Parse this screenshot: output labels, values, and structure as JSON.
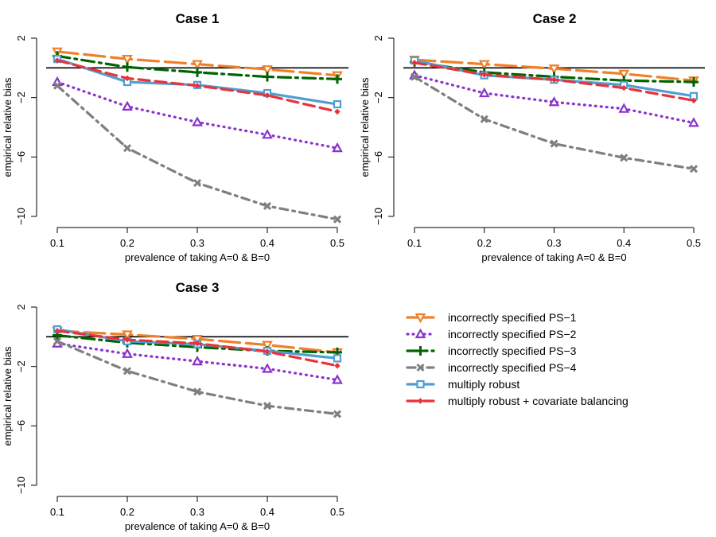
{
  "chart_data": [
    {
      "type": "line",
      "title": "Case 1",
      "xlabel": "prevalence of taking A=0 & B=0",
      "ylabel": "empirical relative bias",
      "x": [
        0.1,
        0.2,
        0.3,
        0.4,
        0.5
      ],
      "x_tick_labels": [
        "0.1",
        "0.2",
        "0.3",
        "0.4",
        "0.5"
      ],
      "y_ticks": [
        2,
        -2,
        -6,
        -10
      ],
      "y_tick_labels": [
        "2",
        "−2",
        "−6",
        "−10"
      ],
      "ylim": [
        -10,
        2
      ],
      "reference_line": 0,
      "series": [
        {
          "name": "incorrectly specified PS−1",
          "values": [
            1.1,
            0.6,
            0.25,
            -0.1,
            -0.5
          ]
        },
        {
          "name": "incorrectly specified PS−2",
          "values": [
            -0.95,
            -2.6,
            -3.65,
            -4.5,
            -5.4
          ]
        },
        {
          "name": "incorrectly specified PS−3",
          "values": [
            0.8,
            0.05,
            -0.3,
            -0.6,
            -0.75
          ]
        },
        {
          "name": "incorrectly specified PS−4",
          "values": [
            -1.2,
            -5.4,
            -7.75,
            -9.3,
            -10.2
          ]
        },
        {
          "name": "multiply robust",
          "values": [
            0.6,
            -0.95,
            -1.15,
            -1.7,
            -2.45
          ]
        },
        {
          "name": "multiply robust + covariate balancing",
          "values": [
            0.5,
            -0.7,
            -1.2,
            -1.85,
            -2.95
          ]
        }
      ]
    },
    {
      "type": "line",
      "title": "Case 2",
      "xlabel": "prevalence of taking A=0 & B=0",
      "ylabel": "empirical relative bias",
      "x": [
        0.1,
        0.2,
        0.3,
        0.4,
        0.5
      ],
      "x_tick_labels": [
        "0.1",
        "0.2",
        "0.3",
        "0.4",
        "0.5"
      ],
      "y_ticks": [
        2,
        -2,
        -6,
        -10
      ],
      "y_tick_labels": [
        "2",
        "−2",
        "−6",
        "−10"
      ],
      "ylim": [
        -10,
        2
      ],
      "reference_line": 0,
      "series": [
        {
          "name": "incorrectly specified PS−1",
          "values": [
            0.55,
            0.25,
            -0.05,
            -0.4,
            -0.85
          ]
        },
        {
          "name": "incorrectly specified PS−2",
          "values": [
            -0.5,
            -1.7,
            -2.3,
            -2.75,
            -3.7
          ]
        },
        {
          "name": "incorrectly specified PS−3",
          "values": [
            0.4,
            -0.3,
            -0.6,
            -0.85,
            -0.95
          ]
        },
        {
          "name": "incorrectly specified PS−4",
          "values": [
            -0.6,
            -3.45,
            -5.1,
            -6.05,
            -6.8
          ]
        },
        {
          "name": "multiply robust",
          "values": [
            0.5,
            -0.5,
            -0.8,
            -1.15,
            -1.9
          ]
        },
        {
          "name": "multiply robust + covariate balancing",
          "values": [
            0.35,
            -0.45,
            -0.8,
            -1.35,
            -2.2
          ]
        }
      ]
    },
    {
      "type": "line",
      "title": "Case 3",
      "xlabel": "prevalence of taking A=0 & B=0",
      "ylabel": "empirical relative bias",
      "x": [
        0.1,
        0.2,
        0.3,
        0.4,
        0.5
      ],
      "x_tick_labels": [
        "0.1",
        "0.2",
        "0.3",
        "0.4",
        "0.5"
      ],
      "y_ticks": [
        2,
        -2,
        -6,
        -10
      ],
      "y_tick_labels": [
        "2",
        "−2",
        "−6",
        "−10"
      ],
      "ylim": [
        -10,
        2
      ],
      "reference_line": 0,
      "series": [
        {
          "name": "incorrectly specified PS−1",
          "values": [
            0.4,
            0.15,
            -0.15,
            -0.55,
            -1.05
          ]
        },
        {
          "name": "incorrectly specified PS−2",
          "values": [
            -0.45,
            -1.15,
            -1.65,
            -2.15,
            -2.9
          ]
        },
        {
          "name": "incorrectly specified PS−3",
          "values": [
            0.1,
            -0.4,
            -0.7,
            -0.95,
            -1.05
          ]
        },
        {
          "name": "incorrectly specified PS−4",
          "values": [
            -0.3,
            -2.3,
            -3.7,
            -4.65,
            -5.2
          ]
        },
        {
          "name": "multiply robust",
          "values": [
            0.5,
            -0.3,
            -0.5,
            -0.95,
            -1.45
          ]
        },
        {
          "name": "multiply robust + covariate balancing",
          "values": [
            0.4,
            -0.2,
            -0.45,
            -1.0,
            -1.95
          ]
        }
      ]
    }
  ],
  "series_styles": [
    {
      "color": "#F07F2A",
      "dash": "26 8",
      "marker": "triangle-down"
    },
    {
      "color": "#8A33CC",
      "dash": "1 6",
      "marker": "triangle-up"
    },
    {
      "color": "#006400",
      "dash": "16 6 3 6",
      "marker": "plus"
    },
    {
      "color": "#7F7F7F",
      "dash": "10 6 3 6",
      "marker": "x"
    },
    {
      "color": "#4F9ED4",
      "dash": "",
      "marker": "square"
    },
    {
      "color": "#E8333A",
      "dash": "14 7",
      "marker": "diamond"
    }
  ],
  "legend": {
    "entries": [
      "incorrectly specified PS−1",
      "incorrectly specified PS−2",
      "incorrectly specified PS−3",
      "incorrectly specified PS−4",
      "multiply robust",
      "multiply robust + covariate balancing"
    ]
  }
}
